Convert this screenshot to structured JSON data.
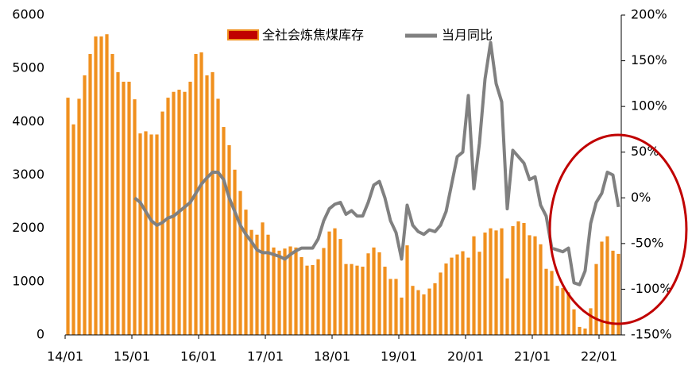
{
  "chart_data": {
    "type": "bar_line",
    "categories": [
      "14/01",
      null,
      null,
      null,
      null,
      null,
      null,
      null,
      null,
      null,
      null,
      null,
      "15/01",
      null,
      null,
      null,
      null,
      null,
      null,
      null,
      null,
      null,
      null,
      null,
      "16/01",
      null,
      null,
      null,
      null,
      null,
      null,
      null,
      null,
      null,
      null,
      null,
      "17/01",
      null,
      null,
      null,
      null,
      null,
      null,
      null,
      null,
      null,
      null,
      null,
      "18/01",
      null,
      null,
      null,
      null,
      null,
      null,
      null,
      null,
      null,
      null,
      null,
      "19/01",
      null,
      null,
      null,
      null,
      null,
      null,
      null,
      null,
      null,
      null,
      null,
      "20/01",
      null,
      null,
      null,
      null,
      null,
      null,
      null,
      null,
      null,
      null,
      null,
      "21/01",
      null,
      null,
      null,
      null,
      null,
      null,
      null,
      null,
      null,
      null,
      null,
      "22/01",
      null,
      null,
      null
    ],
    "series": [
      {
        "name": "全社会炼焦煤库存",
        "color": "#f0901e",
        "type": "bar",
        "values": [
          4450,
          3950,
          4430,
          4870,
          5270,
          5600,
          5600,
          5640,
          5270,
          4930,
          4750,
          4750,
          4420,
          3780,
          3820,
          3760,
          3760,
          4190,
          4450,
          4560,
          4600,
          4560,
          4750,
          5270,
          5300,
          4870,
          4930,
          4430,
          3900,
          3560,
          3100,
          2700,
          2350,
          1970,
          1880,
          2110,
          1880,
          1640,
          1580,
          1620,
          1660,
          1640,
          1460,
          1300,
          1310,
          1420,
          1630,
          1940,
          2000,
          1800,
          1330,
          1330,
          1300,
          1280,
          1530,
          1640,
          1550,
          1280,
          1050,
          1050,
          700,
          1680,
          920,
          840,
          760,
          870,
          970,
          1170,
          1340,
          1450,
          1510,
          1570,
          1450,
          1850,
          1560,
          1920,
          2000,
          1960,
          2000,
          1060,
          2040,
          2130,
          2100,
          1870,
          1850,
          1700,
          1240,
          1200,
          920,
          880,
          800,
          480,
          150,
          120,
          500,
          1330,
          1750,
          1850,
          1580,
          1520
        ]
      },
      {
        "name": "当月同比",
        "color": "#808080",
        "type": "line",
        "axis": "y2",
        "values": [
          null,
          null,
          null,
          null,
          null,
          null,
          null,
          null,
          null,
          null,
          null,
          null,
          0,
          -5,
          -15,
          -25,
          -30,
          -27,
          -22,
          -20,
          -15,
          -10,
          -5,
          5,
          15,
          22,
          28,
          28,
          20,
          0,
          -15,
          -30,
          -40,
          -48,
          -57,
          -60,
          -60,
          -62,
          -64,
          -67,
          -62,
          -58,
          -55,
          -55,
          -55,
          -45,
          -25,
          -12,
          -7,
          -5,
          -18,
          -14,
          -20,
          -20,
          -5,
          14,
          18,
          0,
          -25,
          -38,
          -67,
          -8,
          -30,
          -37,
          -40,
          -35,
          -37,
          -30,
          -15,
          15,
          45,
          50,
          112,
          10,
          60,
          130,
          170,
          125,
          105,
          -12,
          52,
          45,
          38,
          20,
          23,
          -8,
          -20,
          -55,
          -57,
          -59,
          -55,
          -93,
          -95,
          -80,
          -28,
          -5,
          5,
          28,
          25,
          -10
        ]
      }
    ],
    "ylim": [
      0,
      6000
    ],
    "yticks": [
      0,
      1000,
      2000,
      3000,
      4000,
      5000,
      6000
    ],
    "y2lim": [
      -150,
      200
    ],
    "y2ticks": [
      {
        "value": -150,
        "label": "-150%"
      },
      {
        "value": -100,
        "label": "-100%"
      },
      {
        "value": -50,
        "label": "-50%"
      },
      {
        "value": 0,
        "label": "0%"
      },
      {
        "value": 50,
        "label": "50%"
      },
      {
        "value": 100,
        "label": "100%"
      },
      {
        "value": 150,
        "label": "150%"
      },
      {
        "value": 200,
        "label": "200%"
      }
    ]
  }
}
